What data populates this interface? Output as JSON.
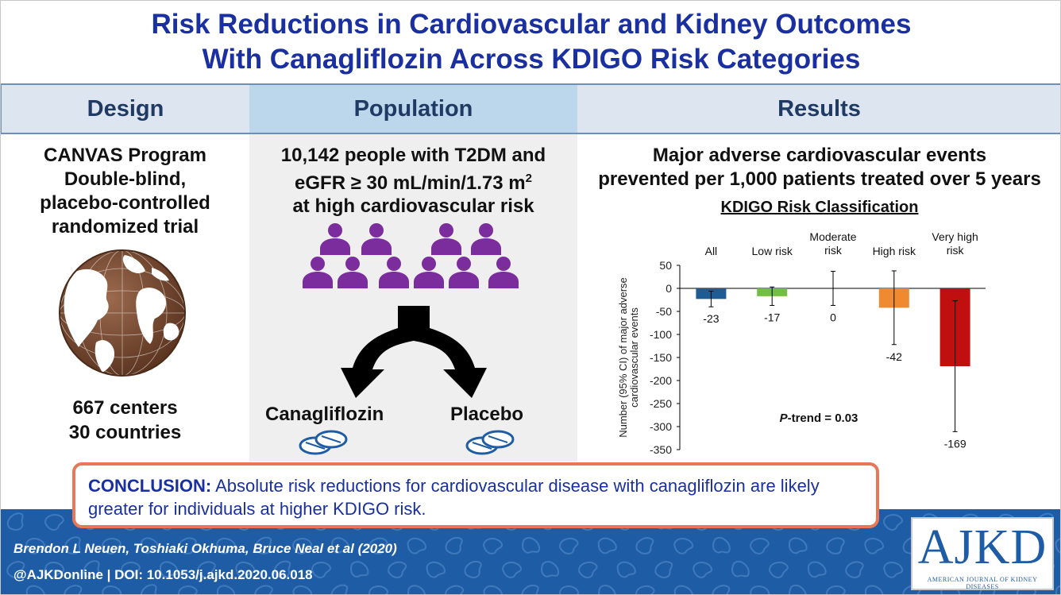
{
  "title": {
    "line1": "Risk Reductions in Cardiovascular and Kidney Outcomes",
    "line2": "With Canagliflozin Across KDIGO Risk Categories"
  },
  "headers": {
    "design": "Design",
    "population": "Population",
    "results": "Results"
  },
  "design": {
    "lines": [
      "CANVAS Program",
      "Double-blind,",
      "placebo-controlled",
      "randomized trial"
    ],
    "centers": "667 centers",
    "countries": "30 countries",
    "icon": "globe-icon"
  },
  "population": {
    "line1": "10,142 people with T2DM and",
    "line2_pre": "eGFR ≥ 30 mL/min/1.73 m",
    "line2_sup": "2",
    "line3": "at high cardiovascular risk",
    "people_icon": "person-icon",
    "people_color": "#7b2d9e",
    "arms": [
      "Canagliflozin",
      "Placebo"
    ],
    "pill_icon": "pill-icon"
  },
  "results": {
    "line1": "Major adverse cardiovascular events",
    "line2": "prevented per 1,000 patients treated over 5 years",
    "classification_title": "KDIGO Risk Classification"
  },
  "chart_data": {
    "type": "bar",
    "title": "KDIGO Risk Classification",
    "categories": [
      [
        "All"
      ],
      [
        "Low risk"
      ],
      [
        "Moderate",
        "risk"
      ],
      [
        "High risk"
      ],
      [
        "Very high",
        "risk"
      ]
    ],
    "values": [
      -23,
      -17,
      0,
      -42,
      -169
    ],
    "value_labels": [
      "-23",
      "-17",
      "0",
      "-42",
      "-169"
    ],
    "ci_low": [
      -40,
      -37,
      -37,
      -122,
      -311
    ],
    "ci_high": [
      -6,
      3,
      37,
      38,
      -27
    ],
    "colors": [
      "#1f5c94",
      "#72bf44",
      "#888888",
      "#f08a30",
      "#c00f0f"
    ],
    "ylabel": "Number (95% CI) of major adverse cardiovascular events",
    "ylabel_lines": [
      "Number (95% CI) of major adverse",
      "cardiovascular events"
    ],
    "ylim": [
      -350,
      50
    ],
    "yticks": [
      50,
      0,
      -50,
      -100,
      -150,
      -200,
      -250,
      -300,
      -350
    ],
    "annotation": {
      "italic": "P",
      "rest": "-trend = 0.03"
    },
    "grid": false,
    "legend": "none"
  },
  "conclusion": {
    "lead": "CONCLUSION:",
    "text": " Absolute risk reductions for cardiovascular disease with canagliflozin are likely greater for individuals at higher KDIGO risk."
  },
  "footer": {
    "authors": "Brendon L Neuen, Toshiaki Okhuma, Bruce Neal et al  (2020)",
    "doi": "@AJKDonline | DOI: 10.1053/j.ajkd.2020.06.018"
  },
  "logo": {
    "main": "AJKD",
    "sub": "AMERICAN JOURNAL OF KIDNEY DISEASES"
  },
  "colors": {
    "title": "#1a2fa0",
    "header_text": "#1f3a63",
    "footer_bg": "#1e5da6",
    "conclusion_border": "#e8775a"
  }
}
